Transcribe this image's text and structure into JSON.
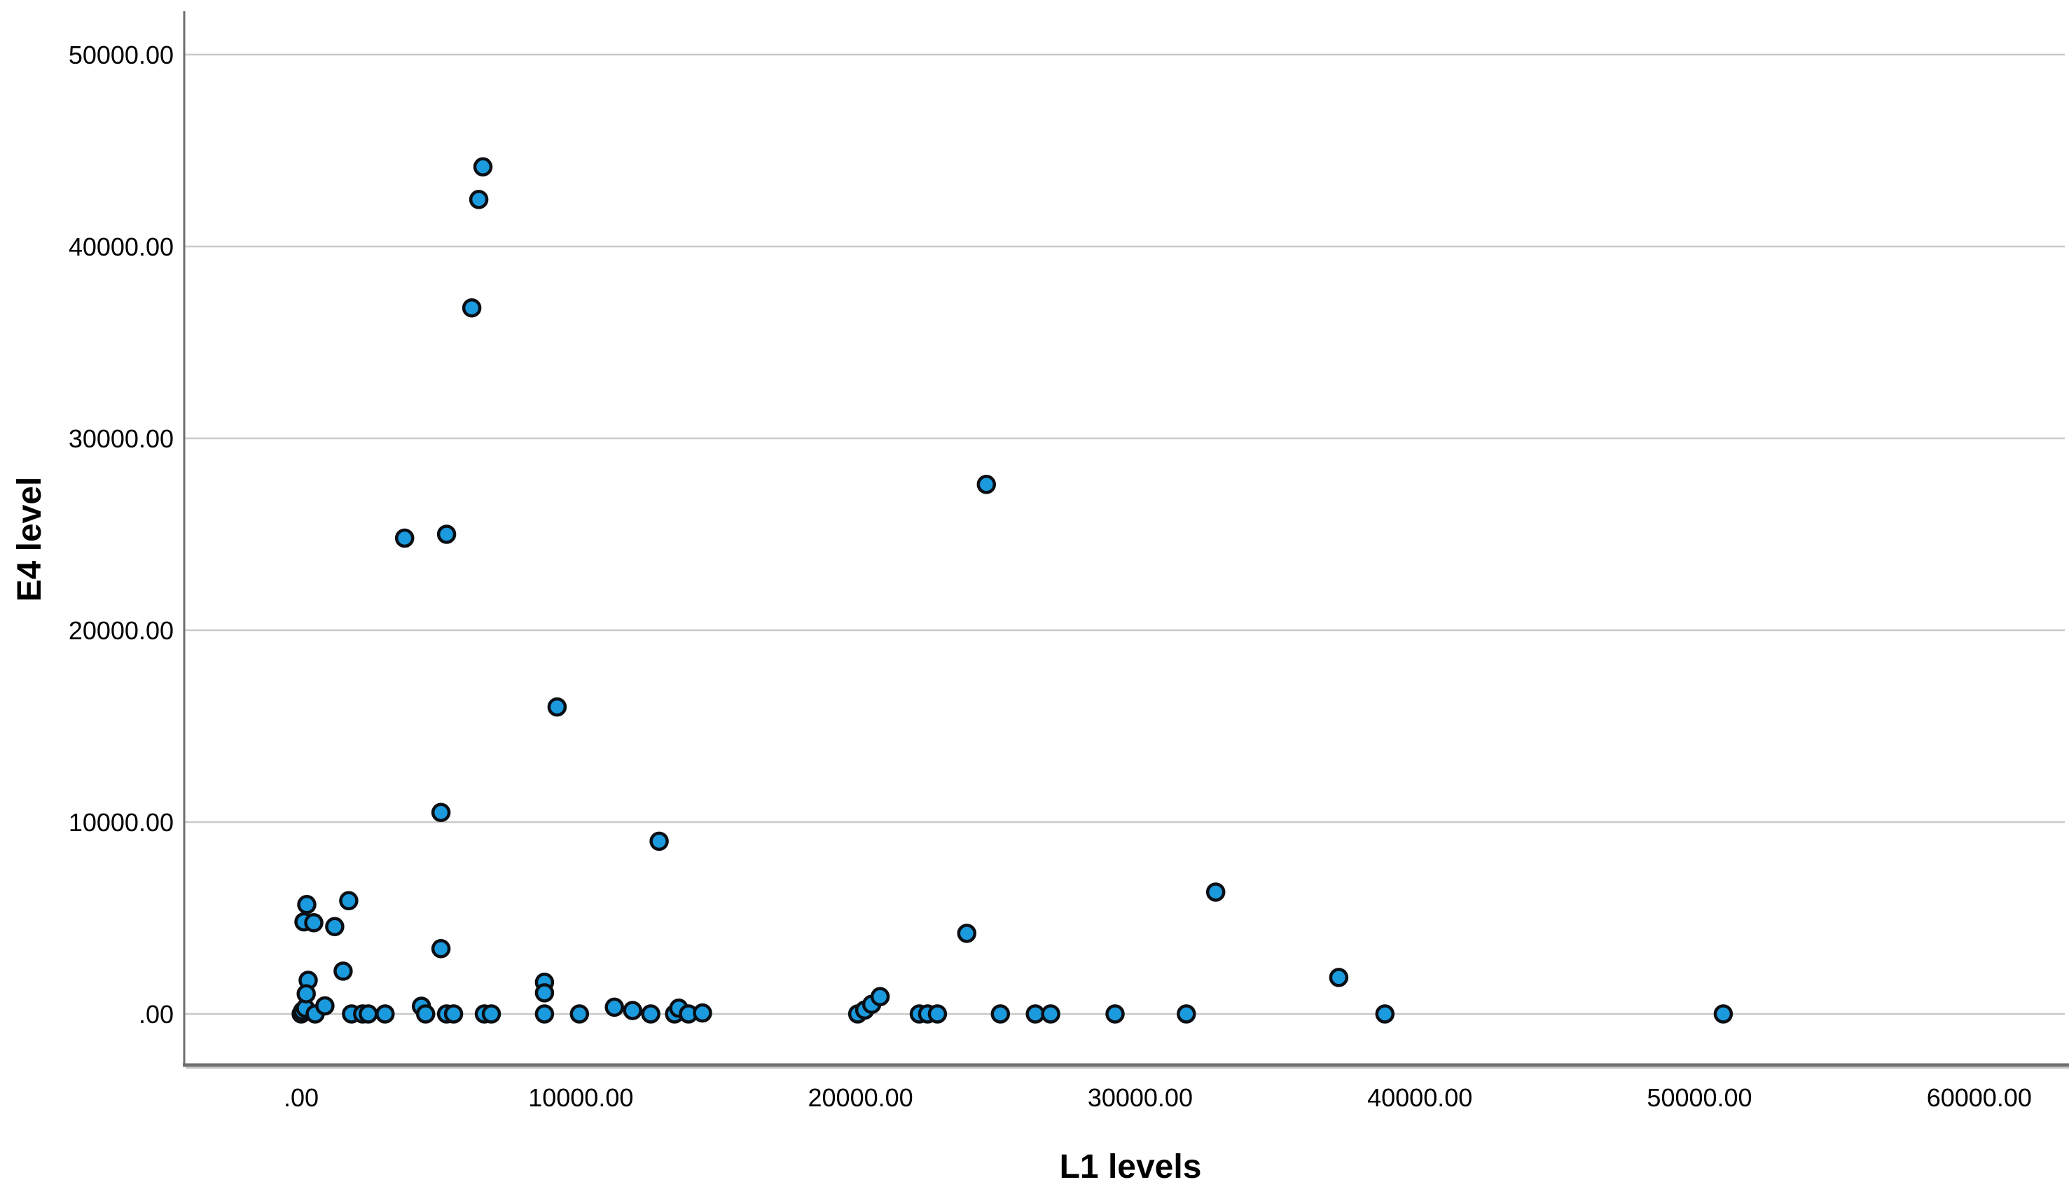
{
  "chart_data": {
    "type": "scatter",
    "title": "",
    "xlabel": "L1 levels",
    "ylabel": "E4 level",
    "x_tick_values": [
      0,
      10000,
      20000,
      30000,
      40000,
      50000,
      60000
    ],
    "x_tick_labels": [
      ".00",
      "10000.00",
      "20000.00",
      "30000.00",
      "40000.00",
      "50000.00",
      "60000.00"
    ],
    "y_tick_values": [
      0,
      10000,
      20000,
      30000,
      40000,
      50000
    ],
    "y_tick_labels": [
      ".00",
      "10000.00",
      "20000.00",
      "30000.00",
      "40000.00",
      "50000.00"
    ],
    "xlim": [
      -4200,
      63300
    ],
    "ylim": [
      -2700,
      52200
    ],
    "grid": true,
    "legend": "none",
    "marker_fill_color": "#1b9ade",
    "marker_edge_color": "#0b0f14",
    "gridline_color": "#c9c9c9",
    "axis_line_color": "#6e6e6e",
    "points": [
      [
        0,
        0
      ],
      [
        50,
        150
      ],
      [
        150,
        300
      ],
      [
        500,
        0
      ],
      [
        850,
        420
      ],
      [
        100,
        4800
      ],
      [
        450,
        4750
      ],
      [
        200,
        5700
      ],
      [
        250,
        1750
      ],
      [
        180,
        1050
      ],
      [
        1200,
        4550
      ],
      [
        1500,
        2230
      ],
      [
        1700,
        5900
      ],
      [
        1800,
        0
      ],
      [
        2200,
        0
      ],
      [
        2400,
        0
      ],
      [
        3000,
        0
      ],
      [
        3700,
        24800
      ],
      [
        4300,
        400
      ],
      [
        4450,
        0
      ],
      [
        5000,
        10500
      ],
      [
        5000,
        3400
      ],
      [
        5200,
        25000
      ],
      [
        5200,
        0
      ],
      [
        5450,
        0
      ],
      [
        6100,
        36800
      ],
      [
        6350,
        42450
      ],
      [
        6500,
        44150
      ],
      [
        6550,
        0
      ],
      [
        6800,
        0
      ],
      [
        8700,
        1650
      ],
      [
        8700,
        1100
      ],
      [
        8700,
        0
      ],
      [
        9150,
        16000
      ],
      [
        9950,
        0
      ],
      [
        11200,
        350
      ],
      [
        11850,
        180
      ],
      [
        12500,
        0
      ],
      [
        12800,
        9000
      ],
      [
        13350,
        0
      ],
      [
        13500,
        300
      ],
      [
        13850,
        0
      ],
      [
        14350,
        50
      ],
      [
        19900,
        0
      ],
      [
        20150,
        200
      ],
      [
        20400,
        500
      ],
      [
        20700,
        900
      ],
      [
        22100,
        0
      ],
      [
        22400,
        0
      ],
      [
        22750,
        0
      ],
      [
        23800,
        4200
      ],
      [
        24500,
        27600
      ],
      [
        25000,
        0
      ],
      [
        26250,
        0
      ],
      [
        26800,
        0
      ],
      [
        29100,
        0
      ],
      [
        31650,
        0
      ],
      [
        32700,
        6350
      ],
      [
        37100,
        1900
      ],
      [
        38750,
        0
      ],
      [
        50850,
        0
      ]
    ]
  }
}
